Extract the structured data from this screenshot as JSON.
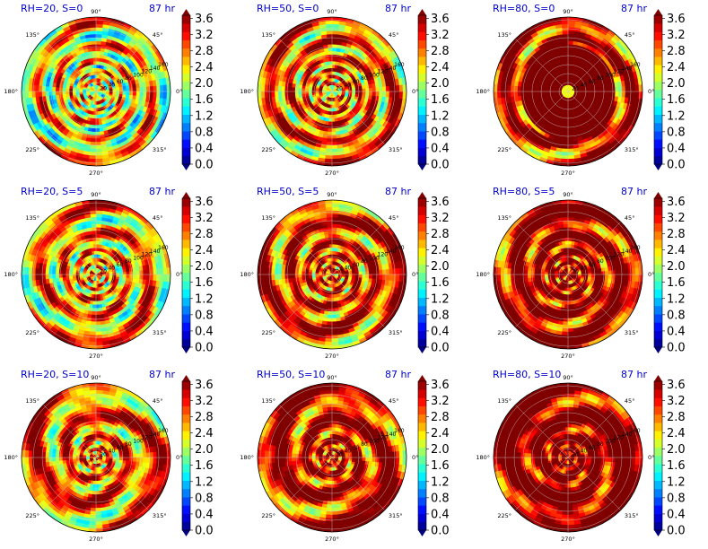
{
  "figure": {
    "panels": [
      {
        "title": "RH=20, S=0",
        "time": "87 hr",
        "pattern": "spiral-moderate",
        "show_radial_labels": true
      },
      {
        "title": "RH=50, S=0",
        "time": "87 hr",
        "pattern": "spiral-strong",
        "show_radial_labels": true
      },
      {
        "title": "RH=80, S=0",
        "time": "87 hr",
        "pattern": "saturated-core",
        "show_radial_labels": true
      },
      {
        "title": "RH=20, S=5",
        "time": "87 hr",
        "pattern": "banded",
        "show_radial_labels": true
      },
      {
        "title": "RH=50, S=5",
        "time": "87 hr",
        "pattern": "banded-strong",
        "show_radial_labels": true
      },
      {
        "title": "RH=80, S=5",
        "time": "87 hr",
        "pattern": "banded-saturated",
        "show_radial_labels": true
      },
      {
        "title": "RH=20, S=10",
        "time": "87 hr",
        "pattern": "broad",
        "show_radial_labels": true
      },
      {
        "title": "RH=50, S=10",
        "time": "87 hr",
        "pattern": "broad-strong",
        "show_radial_labels": true
      },
      {
        "title": "RH=80, S=10",
        "time": "87 hr",
        "pattern": "broad-saturated",
        "show_radial_labels": true
      }
    ],
    "angle_labels": [
      "0°",
      "45°",
      "90°",
      "135°",
      "180°",
      "225°",
      "270°",
      "315°"
    ],
    "radial_labels": [
      "20",
      "40",
      "60",
      "80",
      "100",
      "120",
      "140",
      "160"
    ],
    "colorbar_ticks": [
      "0.0",
      "0.4",
      "0.8",
      "1.2",
      "1.6",
      "2.0",
      "2.4",
      "2.8",
      "3.2",
      "3.6"
    ]
  },
  "chart_data": {
    "type": "heatmap",
    "projection": "polar",
    "layout": "3x3 grid",
    "colormap": "jet",
    "colorbar_range": [
      0.0,
      3.6
    ],
    "colorbar_ticks": [
      0.0,
      0.4,
      0.8,
      1.2,
      1.6,
      2.0,
      2.4,
      2.8,
      3.2,
      3.6
    ],
    "theta_ticks_deg": [
      0,
      45,
      90,
      135,
      180,
      225,
      270,
      315
    ],
    "r_ticks": [
      20,
      40,
      60,
      80,
      100,
      120,
      140,
      160
    ],
    "grid": true,
    "panels": [
      {
        "title": "RH=20, S=0",
        "time": "87 hr"
      },
      {
        "title": "RH=50, S=0",
        "time": "87 hr"
      },
      {
        "title": "RH=80, S=0",
        "time": "87 hr"
      },
      {
        "title": "RH=20, S=5",
        "time": "87 hr"
      },
      {
        "title": "RH=50, S=5",
        "time": "87 hr"
      },
      {
        "title": "RH=80, S=5",
        "time": "87 hr"
      },
      {
        "title": "RH=20, S=10",
        "time": "87 hr"
      },
      {
        "title": "RH=50, S=10",
        "time": "87 hr"
      },
      {
        "title": "RH=80, S=10",
        "time": "87 hr"
      }
    ]
  }
}
